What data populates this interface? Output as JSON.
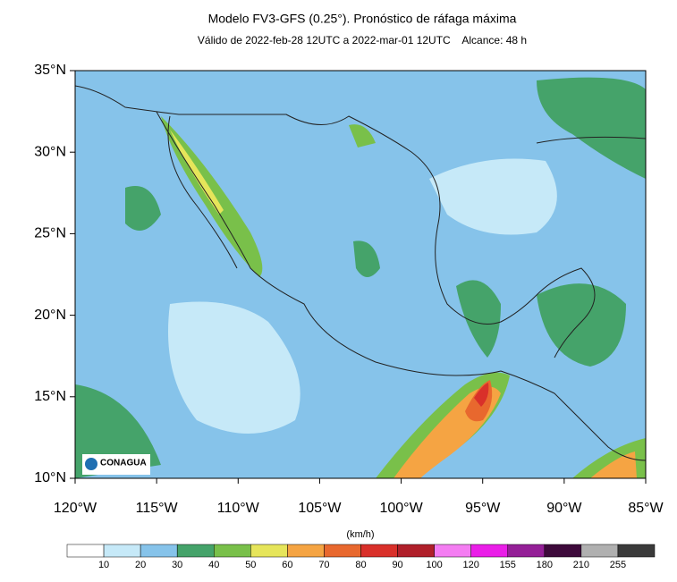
{
  "header": {
    "title": "Modelo FV3-GFS (0.25°). Pronóstico de ráfaga máxima",
    "subtitle": "Válido de 2022-feb-28 12UTC a 2022-mar-01 12UTC    Alcance: 48 h"
  },
  "map": {
    "lat_labels": [
      "35°N",
      "30°N",
      "25°N",
      "20°N",
      "15°N",
      "10°N"
    ],
    "lon_labels": [
      "120°W",
      "115°W",
      "110°W",
      "105°W",
      "100°W",
      "95°W",
      "90°W",
      "85°W"
    ],
    "logo": "CONAGUA"
  },
  "colorbar": {
    "unit": "(km/h)",
    "labels": [
      "10",
      "20",
      "30",
      "40",
      "50",
      "60",
      "70",
      "80",
      "90",
      "100",
      "120",
      "155",
      "180",
      "210",
      "255"
    ],
    "colors": [
      "#ffffff",
      "#c6e9f8",
      "#86c3ea",
      "#45a36a",
      "#79c04a",
      "#e6e55a",
      "#f5a443",
      "#e8682e",
      "#d9302a",
      "#b01f2a",
      "#f47df2",
      "#ea1ee8",
      "#941f97",
      "#3e0a3b",
      "#b0b0b0",
      "#3a3a3a"
    ]
  }
}
